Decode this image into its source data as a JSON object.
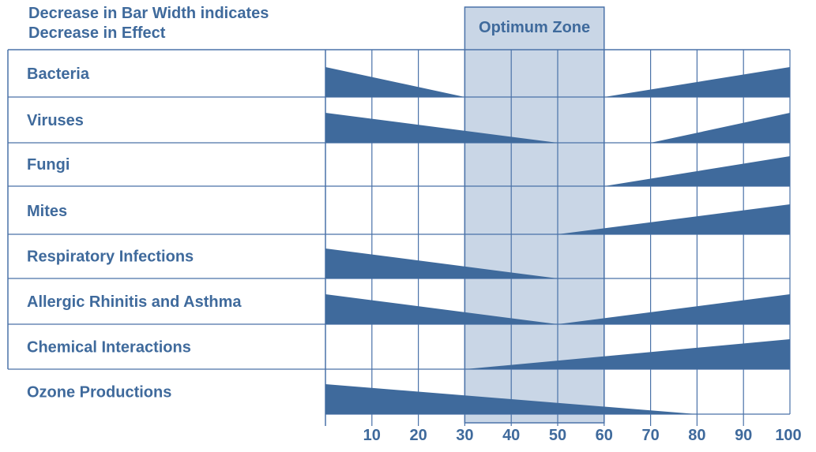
{
  "chart_data": {
    "type": "bar",
    "title_line1": "Decrease in Bar Width indicates",
    "title_line2": "Decrease in Effect",
    "optimum_zone_label": "Optimum Zone",
    "optimum_zone": [
      30,
      60
    ],
    "xlim": [
      0,
      100
    ],
    "x_ticks": [
      10,
      20,
      30,
      40,
      50,
      60,
      70,
      80,
      90,
      100
    ],
    "grid": true,
    "colors": {
      "text": "#3f6a9c",
      "bar": "#3f6a9c",
      "grid": "#4a72a8",
      "zone_fill": "#c9d6e6"
    },
    "categories": [
      {
        "name": "Bacteria",
        "segments": [
          {
            "from": 0,
            "to": 30,
            "direction": "decreasing"
          },
          {
            "from": 60,
            "to": 100,
            "direction": "increasing"
          }
        ]
      },
      {
        "name": "Viruses",
        "segments": [
          {
            "from": 0,
            "to": 50,
            "direction": "decreasing"
          },
          {
            "from": 70,
            "to": 100,
            "direction": "increasing"
          }
        ]
      },
      {
        "name": "Fungi",
        "segments": [
          {
            "from": 60,
            "to": 100,
            "direction": "increasing"
          }
        ]
      },
      {
        "name": "Mites",
        "segments": [
          {
            "from": 50,
            "to": 100,
            "direction": "increasing"
          }
        ]
      },
      {
        "name": "Respiratory Infections",
        "segments": [
          {
            "from": 0,
            "to": 50,
            "direction": "decreasing"
          }
        ]
      },
      {
        "name": "Allergic Rhinitis and Asthma",
        "segments": [
          {
            "from": 0,
            "to": 50,
            "direction": "decreasing"
          },
          {
            "from": 50,
            "to": 100,
            "direction": "increasing"
          }
        ]
      },
      {
        "name": "Chemical Interactions",
        "segments": [
          {
            "from": 30,
            "to": 100,
            "direction": "increasing"
          }
        ]
      },
      {
        "name": "Ozone Productions",
        "segments": [
          {
            "from": 0,
            "to": 80,
            "direction": "decreasing"
          }
        ]
      }
    ]
  }
}
